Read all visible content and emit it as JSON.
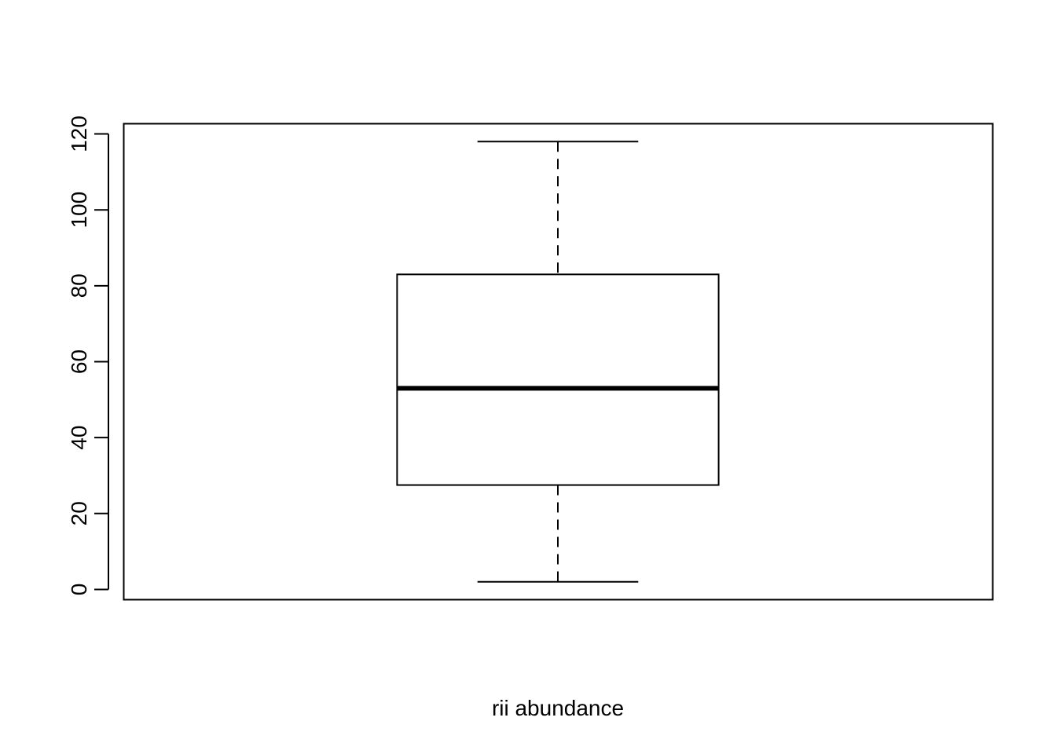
{
  "chart_data": {
    "type": "boxplot",
    "title": "",
    "xlabel": "rii abundance",
    "ylabel": "",
    "ylim": [
      -2.7,
      122.7
    ],
    "y_ticks": [
      0,
      20,
      40,
      60,
      80,
      100,
      120
    ],
    "y_tick_labels": [
      "0",
      "20",
      "40",
      "60",
      "80",
      "100",
      "120"
    ],
    "grid": false,
    "legend": "none",
    "boxes": [
      {
        "whisker_low": 2,
        "q1": 27.5,
        "median": 53,
        "q3": 83,
        "whisker_high": 118
      }
    ]
  }
}
